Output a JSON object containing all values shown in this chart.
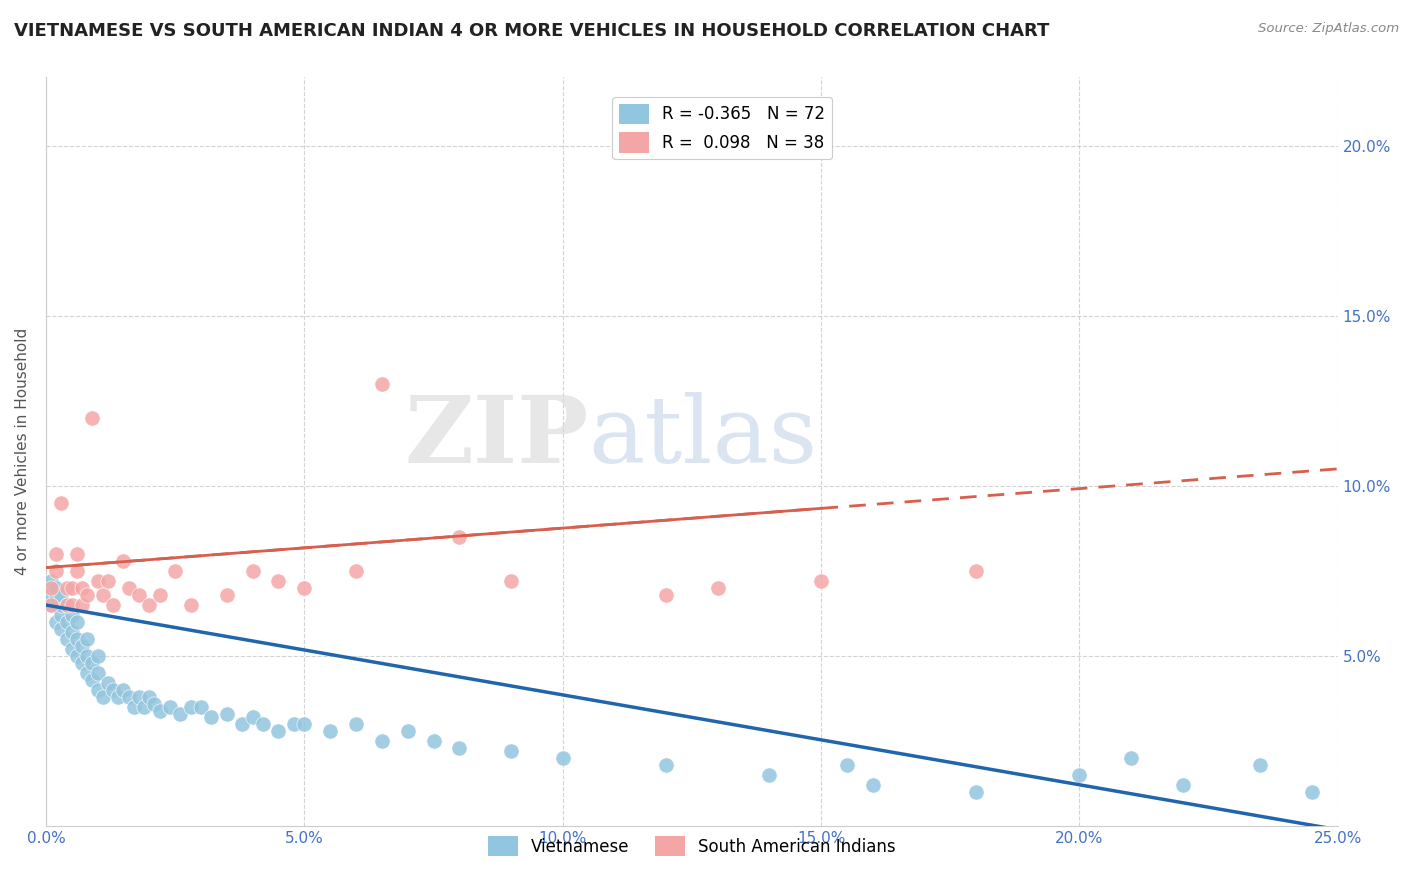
{
  "title": "VIETNAMESE VS SOUTH AMERICAN INDIAN 4 OR MORE VEHICLES IN HOUSEHOLD CORRELATION CHART",
  "source": "Source: ZipAtlas.com",
  "ylabel": "4 or more Vehicles in Household",
  "xlim": [
    0.0,
    0.25
  ],
  "ylim": [
    0.0,
    0.22
  ],
  "xticks": [
    0.0,
    0.05,
    0.1,
    0.15,
    0.2,
    0.25
  ],
  "yticks_left": [
    0.05,
    0.1,
    0.15,
    0.2
  ],
  "yticks_right": [
    0.05,
    0.1,
    0.15,
    0.2
  ],
  "vietnamese_color": "#92c5de",
  "south_american_color": "#f4a6a6",
  "trend_vietnamese_color": "#2166ac",
  "trend_south_american_color": "#d6604d",
  "R_vietnamese": -0.365,
  "N_vietnamese": 72,
  "R_south_american": 0.098,
  "N_south_american": 38,
  "legend_label_vietnamese": "Vietnamese",
  "legend_label_south_american": "South American Indians",
  "watermark_zip": "ZIP",
  "watermark_atlas": "atlas",
  "viet_trend_start": 0.065,
  "viet_trend_end": -0.001,
  "sa_trend_start": 0.076,
  "sa_trend_end": 0.105,
  "sa_xend": 0.25,
  "viet_x": [
    0.001,
    0.001,
    0.001,
    0.002,
    0.002,
    0.002,
    0.002,
    0.003,
    0.003,
    0.003,
    0.003,
    0.004,
    0.004,
    0.004,
    0.005,
    0.005,
    0.005,
    0.006,
    0.006,
    0.006,
    0.007,
    0.007,
    0.008,
    0.008,
    0.008,
    0.009,
    0.009,
    0.01,
    0.01,
    0.01,
    0.011,
    0.012,
    0.013,
    0.014,
    0.015,
    0.016,
    0.017,
    0.018,
    0.019,
    0.02,
    0.021,
    0.022,
    0.024,
    0.026,
    0.028,
    0.03,
    0.032,
    0.035,
    0.038,
    0.04,
    0.042,
    0.045,
    0.048,
    0.05,
    0.055,
    0.06,
    0.065,
    0.07,
    0.075,
    0.08,
    0.09,
    0.1,
    0.12,
    0.14,
    0.155,
    0.16,
    0.18,
    0.2,
    0.21,
    0.22,
    0.235,
    0.245
  ],
  "viet_y": [
    0.065,
    0.068,
    0.072,
    0.06,
    0.065,
    0.068,
    0.07,
    0.058,
    0.062,
    0.065,
    0.068,
    0.055,
    0.06,
    0.065,
    0.052,
    0.057,
    0.062,
    0.05,
    0.055,
    0.06,
    0.048,
    0.053,
    0.045,
    0.05,
    0.055,
    0.043,
    0.048,
    0.04,
    0.045,
    0.05,
    0.038,
    0.042,
    0.04,
    0.038,
    0.04,
    0.038,
    0.035,
    0.038,
    0.035,
    0.038,
    0.036,
    0.034,
    0.035,
    0.033,
    0.035,
    0.035,
    0.032,
    0.033,
    0.03,
    0.032,
    0.03,
    0.028,
    0.03,
    0.03,
    0.028,
    0.03,
    0.025,
    0.028,
    0.025,
    0.023,
    0.022,
    0.02,
    0.018,
    0.015,
    0.018,
    0.012,
    0.01,
    0.015,
    0.02,
    0.012,
    0.018,
    0.01
  ],
  "sa_x": [
    0.001,
    0.001,
    0.002,
    0.002,
    0.003,
    0.004,
    0.004,
    0.005,
    0.005,
    0.006,
    0.006,
    0.007,
    0.007,
    0.008,
    0.009,
    0.01,
    0.011,
    0.012,
    0.013,
    0.015,
    0.016,
    0.018,
    0.02,
    0.022,
    0.025,
    0.028,
    0.035,
    0.04,
    0.045,
    0.05,
    0.06,
    0.065,
    0.08,
    0.09,
    0.12,
    0.13,
    0.15,
    0.18
  ],
  "sa_y": [
    0.065,
    0.07,
    0.075,
    0.08,
    0.095,
    0.065,
    0.07,
    0.065,
    0.07,
    0.075,
    0.08,
    0.065,
    0.07,
    0.068,
    0.12,
    0.072,
    0.068,
    0.072,
    0.065,
    0.078,
    0.07,
    0.068,
    0.065,
    0.068,
    0.075,
    0.065,
    0.068,
    0.075,
    0.072,
    0.07,
    0.075,
    0.13,
    0.085,
    0.072,
    0.068,
    0.07,
    0.072,
    0.075
  ]
}
